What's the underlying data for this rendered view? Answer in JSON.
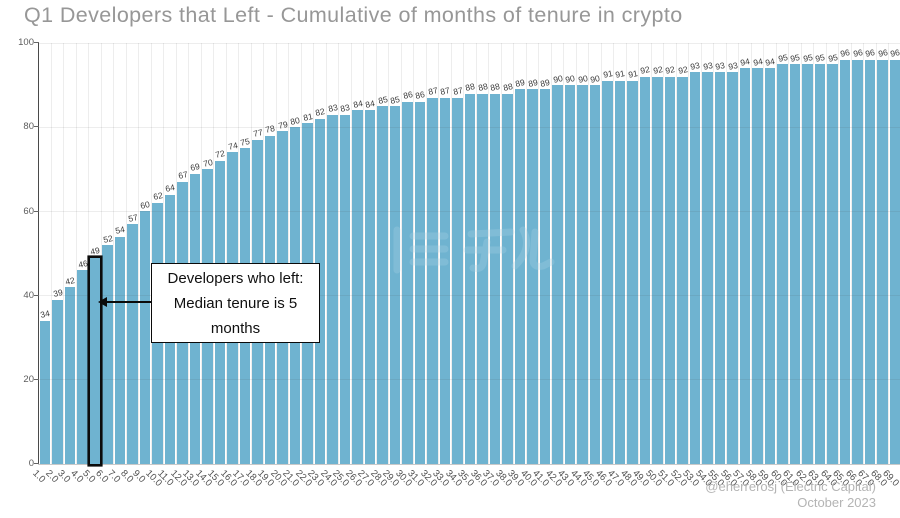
{
  "title": "Q1 Developers that Left - Cumulative of months of tenure in crypto",
  "chart_data": {
    "type": "bar",
    "title": "Q1 Developers that Left - Cumulative of months of tenure in crypto",
    "xlabel": "",
    "ylabel": "",
    "ylim": [
      0,
      100
    ],
    "yticks": [
      0,
      20,
      40,
      60,
      80,
      100
    ],
    "grid": true,
    "legend": "none",
    "bar_color": "#6fb3d0",
    "highlight_color": "#0b0b0b",
    "highlighted_category": "5.0",
    "categories": [
      "1.0",
      "2.0",
      "3.0",
      "4.0",
      "5.0",
      "6.0",
      "7.0",
      "8.0",
      "9.0",
      "10.0",
      "11.0",
      "12.0",
      "13.0",
      "14.0",
      "15.0",
      "16.0",
      "17.0",
      "18.0",
      "19.0",
      "20.0",
      "21.0",
      "22.0",
      "23.0",
      "24.0",
      "25.0",
      "26.0",
      "27.0",
      "28.0",
      "29.0",
      "30.0",
      "31.0",
      "32.0",
      "33.0",
      "34.0",
      "35.0",
      "36.0",
      "37.0",
      "38.0",
      "39.0",
      "40.0",
      "41.0",
      "42.0",
      "43.0",
      "44.0",
      "45.0",
      "46.0",
      "47.0",
      "48.0",
      "49.0",
      "50.0",
      "51.0",
      "52.0",
      "53.0",
      "54.0",
      "55.0",
      "56.0",
      "57.0",
      "58.0",
      "59.0",
      "60.0",
      "61.0",
      "62.0",
      "63.0",
      "64.0",
      "65.0",
      "66.0",
      "67.0",
      "68.0",
      "69.0"
    ],
    "values": [
      34,
      39,
      42,
      46,
      49,
      52,
      54,
      57,
      60,
      62,
      64,
      67,
      69,
      70,
      72,
      74,
      75,
      77,
      78,
      79,
      80,
      81,
      82,
      83,
      83,
      84,
      84,
      85,
      85,
      86,
      86,
      87,
      87,
      87,
      88,
      88,
      88,
      88,
      89,
      89,
      89,
      90,
      90,
      90,
      90,
      91,
      91,
      91,
      92,
      92,
      92,
      92,
      93,
      93,
      93,
      93,
      94,
      94,
      94,
      95,
      95,
      95,
      95,
      95,
      96,
      96,
      96,
      96,
      96
    ]
  },
  "annotation": {
    "line1": "Developers who left:",
    "line2": "Median tenure is 5",
    "line3": "months",
    "arrow_target": "5.0"
  },
  "watermark": {
    "name": "blockbeats-logo-watermark"
  },
  "footer": {
    "credit": "@eherrerosj (Electric Capital)",
    "date": "October 2023"
  }
}
